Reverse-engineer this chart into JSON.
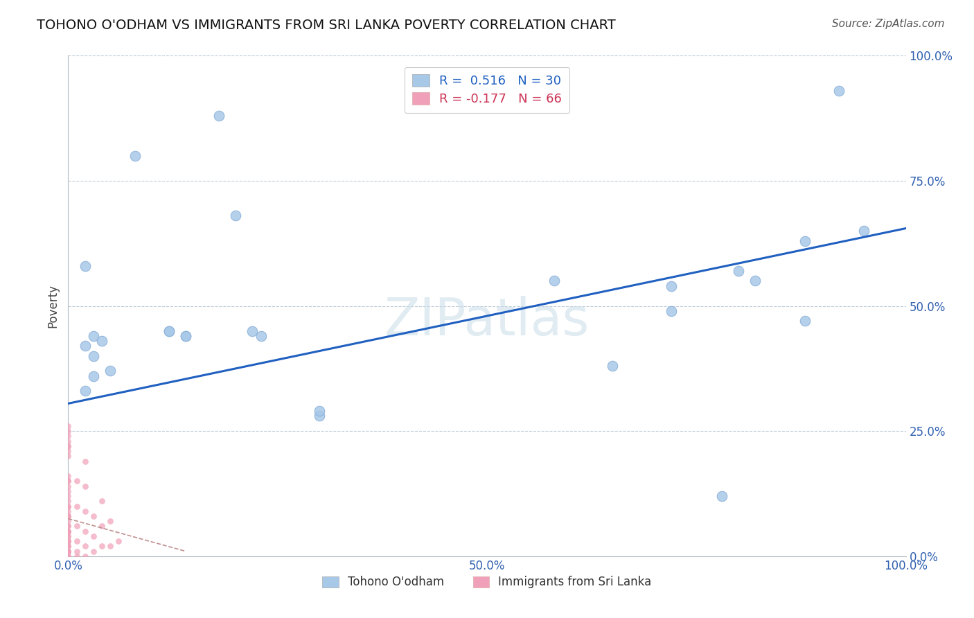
{
  "title": "TOHONO O'ODHAM VS IMMIGRANTS FROM SRI LANKA POVERTY CORRELATION CHART",
  "source": "Source: ZipAtlas.com",
  "ylabel": "Poverty",
  "watermark": "ZIPatlas",
  "xlim": [
    0,
    1.0
  ],
  "ylim": [
    0,
    1.0
  ],
  "xticks": [
    0.0,
    0.25,
    0.5,
    0.75,
    1.0
  ],
  "yticks": [
    0.0,
    0.25,
    0.5,
    0.75,
    1.0
  ],
  "xticklabels": [
    "0.0%",
    "",
    "50.0%",
    "",
    "100.0%"
  ],
  "yticklabels_right": [
    "0.0%",
    "25.0%",
    "50.0%",
    "75.0%",
    "100.0%"
  ],
  "blue_R": "0.516",
  "blue_N": "30",
  "pink_R": "-0.177",
  "pink_N": "66",
  "blue_color": "#a8c8e8",
  "pink_color": "#f0a0b8",
  "blue_line_color": "#2060c0",
  "tick_color": "#3060b0",
  "grid_color": "#c0ccd8",
  "background_color": "#ffffff",
  "blue_scatter_x": [
    0.02,
    0.08,
    0.02,
    0.03,
    0.04,
    0.03,
    0.03,
    0.02,
    0.12,
    0.14,
    0.22,
    0.23,
    0.18,
    0.58,
    0.72,
    0.72,
    0.8,
    0.82,
    0.88,
    0.88,
    0.92,
    0.95,
    0.65,
    0.78,
    0.3,
    0.3,
    0.05,
    0.12,
    0.14,
    0.2
  ],
  "blue_scatter_y": [
    0.58,
    0.8,
    0.42,
    0.44,
    0.43,
    0.4,
    0.36,
    0.33,
    0.45,
    0.44,
    0.45,
    0.44,
    0.88,
    0.55,
    0.54,
    0.49,
    0.57,
    0.55,
    0.63,
    0.47,
    0.93,
    0.65,
    0.38,
    0.12,
    0.28,
    0.29,
    0.37,
    0.45,
    0.44,
    0.68
  ],
  "pink_scatter_x": [
    0.0,
    0.0,
    0.0,
    0.0,
    0.0,
    0.0,
    0.0,
    0.0,
    0.0,
    0.0,
    0.0,
    0.0,
    0.0,
    0.0,
    0.0,
    0.0,
    0.0,
    0.0,
    0.0,
    0.0,
    0.0,
    0.0,
    0.0,
    0.0,
    0.0,
    0.0,
    0.0,
    0.0,
    0.0,
    0.0,
    0.0,
    0.0,
    0.0,
    0.0,
    0.0,
    0.0,
    0.0,
    0.0,
    0.0,
    0.0,
    0.0,
    0.0,
    0.0,
    0.0,
    0.0,
    0.01,
    0.01,
    0.01,
    0.01,
    0.01,
    0.01,
    0.02,
    0.02,
    0.02,
    0.02,
    0.02,
    0.02,
    0.03,
    0.03,
    0.03,
    0.04,
    0.04,
    0.04,
    0.05,
    0.05,
    0.06
  ],
  "pink_scatter_y": [
    0.0,
    0.01,
    0.01,
    0.01,
    0.02,
    0.02,
    0.03,
    0.03,
    0.04,
    0.04,
    0.05,
    0.05,
    0.06,
    0.07,
    0.08,
    0.09,
    0.1,
    0.11,
    0.12,
    0.13,
    0.14,
    0.15,
    0.16,
    0.2,
    0.21,
    0.22,
    0.23,
    0.24,
    0.25,
    0.26,
    0.0,
    0.01,
    0.02,
    0.03,
    0.05,
    0.06,
    0.08,
    0.1,
    0.15,
    0.22,
    0.0,
    0.01,
    0.03,
    0.05,
    0.08,
    0.0,
    0.01,
    0.03,
    0.06,
    0.1,
    0.15,
    0.0,
    0.02,
    0.05,
    0.09,
    0.14,
    0.19,
    0.01,
    0.04,
    0.08,
    0.02,
    0.06,
    0.11,
    0.02,
    0.07,
    0.03
  ],
  "blue_trend_x0": 0.0,
  "blue_trend_x1": 1.0,
  "blue_trend_y0": 0.305,
  "blue_trend_y1": 0.655,
  "pink_trend_x0": 0.0,
  "pink_trend_x1": 0.14,
  "pink_trend_y0": 0.075,
  "pink_trend_y1": 0.01
}
